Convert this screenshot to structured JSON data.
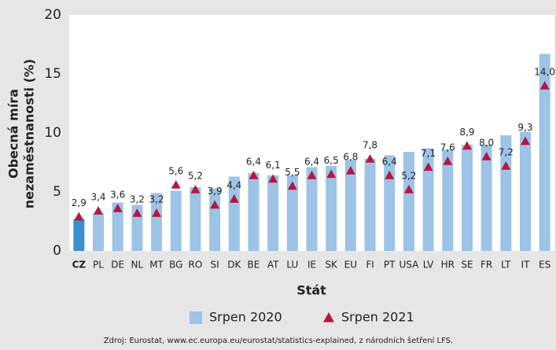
{
  "chart_data": {
    "type": "bar",
    "ylabel": [
      "Obecná míra",
      "nezaměstnanosti (%)"
    ],
    "xlabel": "Stát",
    "source": "Zdroj: Eurostat, www.ec.europa.eu/eurostat/statistics-explained, z národních šetření LFS.",
    "categories": [
      "CZ",
      "PL",
      "DE",
      "NL",
      "MT",
      "BG",
      "RO",
      "SI",
      "DK",
      "BE",
      "AT",
      "LU",
      "IE",
      "SK",
      "EU",
      "FI",
      "PT",
      "USA",
      "LV",
      "HR",
      "SE",
      "FR",
      "LT",
      "IT",
      "ES"
    ],
    "series": [
      {
        "name": "Srpen 2020",
        "color": "#9dc3e6",
        "colors": [
          "#3a8fd0",
          "#9dc3e6",
          "#9dc3e6",
          "#9dc3e6",
          "#9dc3e6",
          "#9dc3e6",
          "#9dc3e6",
          "#9dc3e6",
          "#9dc3e6",
          "#9dc3e6",
          "#9dc3e6",
          "#9dc3e6",
          "#9dc3e6",
          "#9dc3e6",
          "#9dc3e6",
          "#9dc3e6",
          "#9dc3e6",
          "#9dc3e6",
          "#9dc3e6",
          "#9dc3e6",
          "#9dc3e6",
          "#9dc3e6",
          "#9dc3e6",
          "#9dc3e6",
          "#9dc3e6"
        ],
        "values": [
          2.7,
          3.2,
          4.1,
          3.9,
          4.9,
          5.1,
          5.4,
          5.3,
          6.3,
          6.6,
          6.4,
          6.4,
          7.1,
          7.2,
          7.7,
          7.8,
          8.1,
          8.4,
          8.7,
          8.6,
          9.0,
          9.0,
          9.8,
          10.1,
          16.7
        ]
      },
      {
        "name": "Srpen 2021",
        "color": "#b5173f",
        "values": [
          2.9,
          3.4,
          3.6,
          3.2,
          3.2,
          5.6,
          5.2,
          3.9,
          4.4,
          6.4,
          6.1,
          5.5,
          6.4,
          6.5,
          6.8,
          7.8,
          6.4,
          5.2,
          7.1,
          7.6,
          8.9,
          8.0,
          7.2,
          9.3,
          14.0
        ],
        "value_labels": [
          "2,9",
          "3,4",
          "3,6",
          "3,2",
          "3,2",
          "5,6",
          "5,2",
          "3,9",
          "4,4",
          "6,4",
          "6,1",
          "5,5",
          "6,4",
          "6,5",
          "6,8",
          "7,8",
          "6,4",
          "5,2",
          "7,1",
          "7,6",
          "8,9",
          "8,0",
          "7,2",
          "9,3",
          "14,0"
        ]
      }
    ],
    "ylim": [
      0,
      20
    ],
    "yticks": [
      0,
      5,
      10,
      15,
      20
    ],
    "grid": false
  }
}
